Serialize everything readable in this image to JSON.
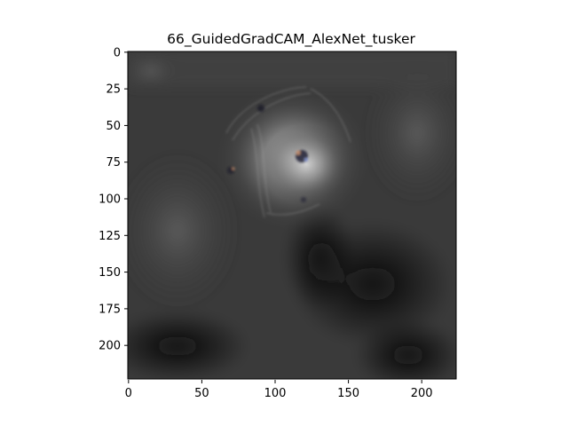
{
  "figure": {
    "title": "66_GuidedGradCAM_AlexNet_tusker",
    "x_ticks": [
      "0",
      "50",
      "100",
      "150",
      "200"
    ],
    "y_ticks": [
      "0",
      "25",
      "50",
      "75",
      "100",
      "125",
      "150",
      "175",
      "200"
    ],
    "colors": {
      "background": "#ffffff",
      "axes_frame": "#000000",
      "image_dark": "#141414",
      "image_mid": "#3a3a3a",
      "image_highlight": "#d8d8d8"
    }
  }
}
